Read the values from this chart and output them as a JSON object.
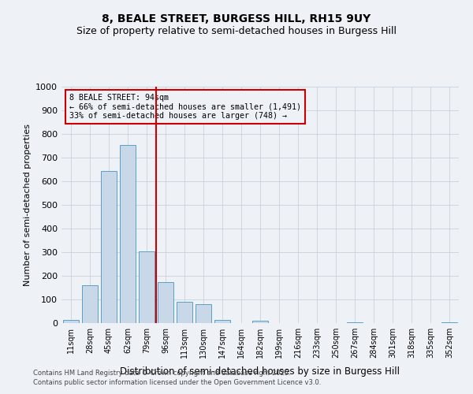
{
  "title1": "8, BEALE STREET, BURGESS HILL, RH15 9UY",
  "title2": "Size of property relative to semi-detached houses in Burgess Hill",
  "xlabel": "Distribution of semi-detached houses by size in Burgess Hill",
  "ylabel": "Number of semi-detached properties",
  "categories": [
    "11sqm",
    "28sqm",
    "45sqm",
    "62sqm",
    "79sqm",
    "96sqm",
    "113sqm",
    "130sqm",
    "147sqm",
    "164sqm",
    "182sqm",
    "199sqm",
    "216sqm",
    "233sqm",
    "250sqm",
    "267sqm",
    "284sqm",
    "301sqm",
    "318sqm",
    "335sqm",
    "352sqm"
  ],
  "values": [
    15,
    160,
    645,
    755,
    305,
    175,
    90,
    80,
    15,
    0,
    10,
    0,
    0,
    0,
    0,
    5,
    0,
    0,
    0,
    0,
    5
  ],
  "bar_color": "#c8d8e8",
  "bar_edge_color": "#5a9fc8",
  "vline_color": "#cc0000",
  "vline_index": 4.5,
  "annotation_title": "8 BEALE STREET: 94sqm",
  "annotation_line1": "← 66% of semi-detached houses are smaller (1,491)",
  "annotation_line2": "33% of semi-detached houses are larger (748) →",
  "annotation_box_color": "#cc0000",
  "ylim": [
    0,
    1000
  ],
  "yticks": [
    0,
    100,
    200,
    300,
    400,
    500,
    600,
    700,
    800,
    900,
    1000
  ],
  "footnote1": "Contains HM Land Registry data © Crown copyright and database right 2025.",
  "footnote2": "Contains public sector information licensed under the Open Government Licence v3.0.",
  "bg_color": "#eef2f7",
  "title_fontsize": 10,
  "subtitle_fontsize": 9
}
